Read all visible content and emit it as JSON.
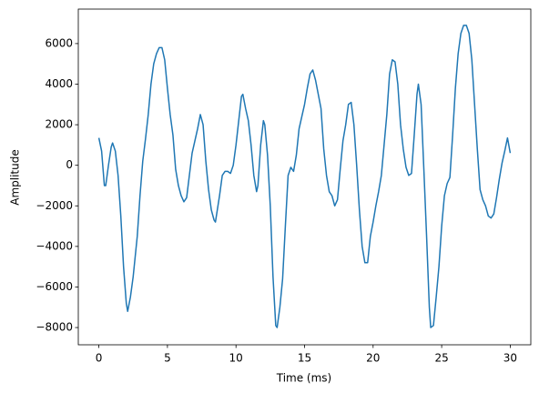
{
  "chart_data": {
    "type": "line",
    "xlabel": "Time (ms)",
    "ylabel": "Amplitude",
    "xlim": [
      -1.5,
      31.5
    ],
    "ylim": [
      -8850,
      7700
    ],
    "xticks": [
      0,
      5,
      10,
      15,
      20,
      25,
      30
    ],
    "yticks": [
      {
        "value": -8000,
        "label": "−8000"
      },
      {
        "value": -6000,
        "label": "−6000"
      },
      {
        "value": -4000,
        "label": "−4000"
      },
      {
        "value": -2000,
        "label": "−2000"
      },
      0,
      2000,
      4000,
      6000
    ],
    "series": [
      {
        "color": "#1f77b4",
        "x": [
          0,
          0.2,
          0.4,
          0.5,
          0.7,
          0.9,
          1.0,
          1.2,
          1.4,
          1.6,
          1.8,
          2.0,
          2.1,
          2.3,
          2.5,
          2.8,
          3.0,
          3.2,
          3.4,
          3.6,
          3.8,
          4.0,
          4.2,
          4.4,
          4.6,
          4.8,
          5.0,
          5.2,
          5.4,
          5.6,
          5.8,
          6.0,
          6.2,
          6.4,
          6.6,
          6.8,
          7.0,
          7.2,
          7.4,
          7.6,
          7.8,
          8.0,
          8.2,
          8.4,
          8.5,
          8.8,
          9.0,
          9.2,
          9.4,
          9.6,
          9.8,
          10.0,
          10.2,
          10.4,
          10.5,
          10.7,
          10.9,
          11.1,
          11.3,
          11.5,
          11.6,
          11.8,
          12.0,
          12.1,
          12.3,
          12.5,
          12.7,
          12.9,
          13.0,
          13.2,
          13.4,
          13.6,
          13.8,
          14.0,
          14.2,
          14.4,
          14.6,
          14.8,
          15.0,
          15.2,
          15.4,
          15.6,
          15.8,
          16.0,
          16.2,
          16.4,
          16.6,
          16.8,
          17.0,
          17.2,
          17.4,
          17.6,
          17.8,
          18.0,
          18.2,
          18.4,
          18.6,
          18.8,
          19.0,
          19.2,
          19.4,
          19.6,
          19.8,
          20.0,
          20.2,
          20.4,
          20.6,
          20.8,
          21.0,
          21.2,
          21.4,
          21.6,
          21.8,
          22.0,
          22.2,
          22.4,
          22.6,
          22.8,
          23.0,
          23.2,
          23.3,
          23.5,
          23.7,
          23.9,
          24.1,
          24.2,
          24.4,
          24.6,
          24.8,
          25.0,
          25.2,
          25.4,
          25.6,
          25.8,
          26.0,
          26.2,
          26.4,
          26.6,
          26.8,
          27.0,
          27.2,
          27.4,
          27.6,
          27.8,
          28.0,
          28.2,
          28.4,
          28.6,
          28.8,
          29.0,
          29.2,
          29.4,
          29.6,
          29.8,
          30.0
        ],
        "values": [
          1350,
          700,
          -1000,
          -1000,
          0,
          900,
          1100,
          700,
          -500,
          -2500,
          -5000,
          -6800,
          -7200,
          -6500,
          -5500,
          -3500,
          -1500,
          200,
          1300,
          2500,
          4000,
          5000,
          5500,
          5800,
          5800,
          5200,
          3800,
          2500,
          1500,
          -200,
          -1000,
          -1500,
          -1800,
          -1600,
          -500,
          600,
          1200,
          1800,
          2500,
          2000,
          200,
          -1200,
          -2200,
          -2700,
          -2800,
          -1500,
          -500,
          -300,
          -300,
          -400,
          0,
          1000,
          2200,
          3400,
          3500,
          2800,
          2200,
          1000,
          -500,
          -1300,
          -1000,
          1000,
          2200,
          2000,
          500,
          -2000,
          -5500,
          -7900,
          -8000,
          -7000,
          -5600,
          -3000,
          -500,
          -100,
          -300,
          500,
          1800,
          2400,
          3000,
          3800,
          4500,
          4700,
          4200,
          3500,
          2800,
          800,
          -500,
          -1300,
          -1500,
          -2000,
          -1700,
          -200,
          1200,
          2000,
          3000,
          3100,
          2000,
          0,
          -2200,
          -4000,
          -4800,
          -4800,
          -3500,
          -2800,
          -2000,
          -1300,
          -500,
          1000,
          2500,
          4500,
          5200,
          5100,
          4000,
          2000,
          800,
          -100,
          -500,
          -400,
          1500,
          3500,
          4000,
          3000,
          -200,
          -3500,
          -7000,
          -8000,
          -7900,
          -6500,
          -5000,
          -3000,
          -1500,
          -900,
          -600,
          1500,
          3800,
          5500,
          6500,
          6900,
          6900,
          6500,
          5200,
          3000,
          800,
          -1200,
          -1700,
          -2000,
          -2500,
          -2600,
          -2400,
          -1600,
          -700,
          100,
          700,
          1350,
          600
        ]
      }
    ]
  }
}
